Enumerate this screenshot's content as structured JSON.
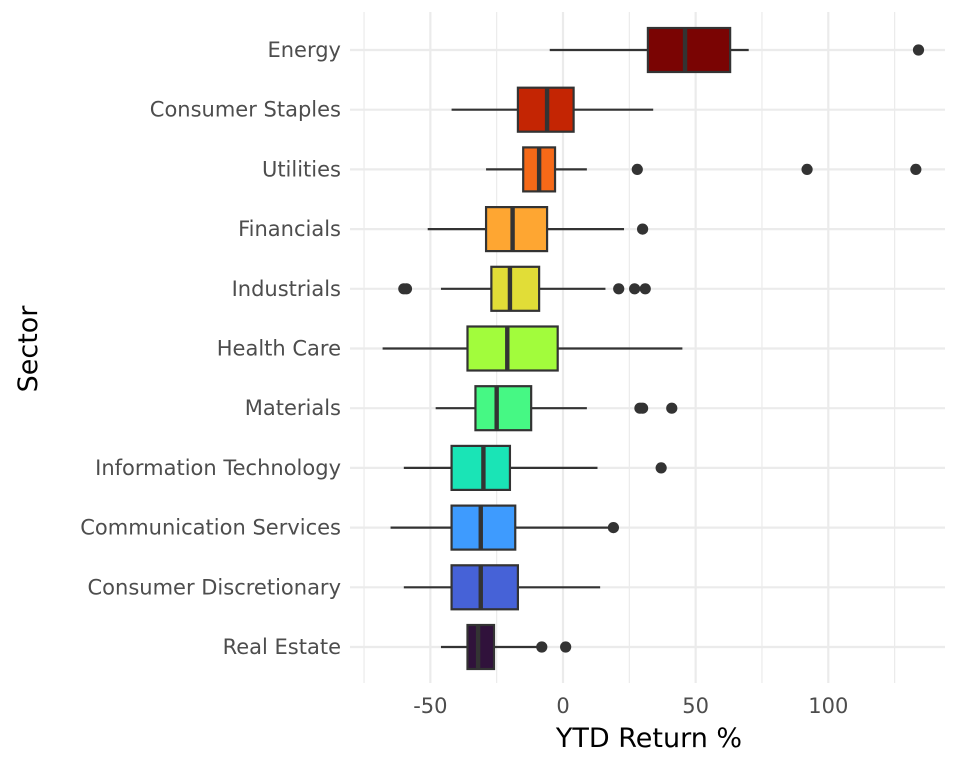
{
  "chart_data": {
    "type": "boxplot",
    "orientation": "horizontal",
    "xlabel": "YTD Return %",
    "ylabel": "Sector",
    "xlim": [
      -75,
      143
    ],
    "x_ticks": [
      -50,
      0,
      50,
      100
    ],
    "x_tick_labels": [
      "-50",
      "0",
      "50",
      "100"
    ],
    "grid": true,
    "legend": "none",
    "categories": [
      "Energy",
      "Consumer Staples",
      "Utilities",
      "Financials",
      "Industrials",
      "Health Care",
      "Materials",
      "Information Technology",
      "Communication Services",
      "Consumer Discretionary",
      "Real Estate"
    ],
    "series": [
      {
        "category": "Energy",
        "color": "#7a0403",
        "whisker_low": -5,
        "q1": 32,
        "median": 46,
        "q3": 63,
        "whisker_high": 70,
        "outliers": [
          134
        ]
      },
      {
        "category": "Consumer Staples",
        "color": "#c42503",
        "whisker_low": -42,
        "q1": -17,
        "median": -6,
        "q3": 4,
        "whisker_high": 34,
        "outliers": []
      },
      {
        "category": "Utilities",
        "color": "#f56918",
        "whisker_low": -29,
        "q1": -15,
        "median": -9,
        "q3": -3,
        "whisker_high": 9,
        "outliers": [
          28,
          92,
          133
        ]
      },
      {
        "category": "Financials",
        "color": "#fea632",
        "whisker_low": -51,
        "q1": -29,
        "median": -19,
        "q3": -6,
        "whisker_high": 23,
        "outliers": [
          30
        ]
      },
      {
        "category": "Industrials",
        "color": "#e1dd37",
        "whisker_low": -46,
        "q1": -27,
        "median": -20,
        "q3": -9,
        "whisker_high": 16,
        "outliers": [
          -59,
          -60,
          21,
          27,
          31
        ]
      },
      {
        "category": "Health Care",
        "color": "#a2fc3c",
        "whisker_low": -68,
        "q1": -36,
        "median": -21,
        "q3": -2,
        "whisker_high": 45,
        "outliers": []
      },
      {
        "category": "Materials",
        "color": "#46f884",
        "whisker_low": -48,
        "q1": -33,
        "median": -25,
        "q3": -12,
        "whisker_high": 9,
        "outliers": [
          29,
          30,
          41
        ]
      },
      {
        "category": "Information Technology",
        "color": "#1ae4b6",
        "whisker_low": -60,
        "q1": -42,
        "median": -30,
        "q3": -20,
        "whisker_high": 13,
        "outliers": [
          37
        ]
      },
      {
        "category": "Communication Services",
        "color": "#3e9bfe",
        "whisker_low": -65,
        "q1": -42,
        "median": -31,
        "q3": -18,
        "whisker_high": 20,
        "outliers": [
          19
        ]
      },
      {
        "category": "Consumer Discretionary",
        "color": "#4662d7",
        "whisker_low": -60,
        "q1": -42,
        "median": -31,
        "q3": -17,
        "whisker_high": 14,
        "outliers": []
      },
      {
        "category": "Real Estate",
        "color": "#30123b",
        "whisker_low": -46,
        "q1": -36,
        "median": -32,
        "q3": -26,
        "whisker_high": -8,
        "outliers": [
          -8,
          1
        ]
      }
    ]
  }
}
